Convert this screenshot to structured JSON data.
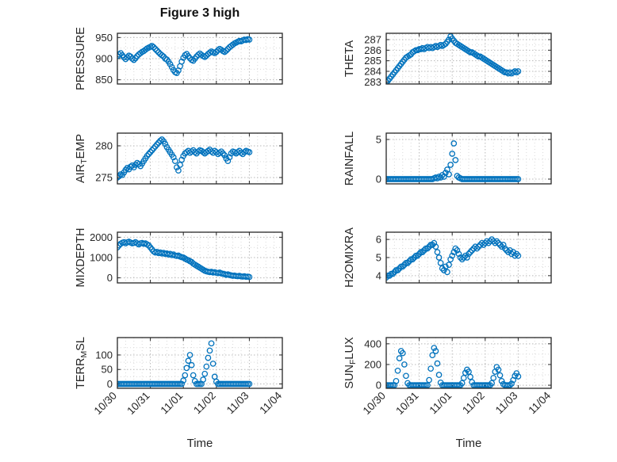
{
  "title": "Figure 3 high",
  "colors": {
    "marker": "#0072BD",
    "axis": "#262626",
    "grid_major": "#b8b8b8",
    "grid_minor": "#d9d9d9"
  },
  "chart_data": {
    "type": "scatter",
    "xlabel": "Time",
    "x_tick_labels": [
      "10/30",
      "10/31",
      "11/01",
      "11/02",
      "11/03",
      "11/04"
    ],
    "x_range": [
      0,
      5
    ],
    "t": [
      0,
      0.05,
      0.1,
      0.15,
      0.2,
      0.25,
      0.3,
      0.35,
      0.4,
      0.45,
      0.5,
      0.55,
      0.6,
      0.65,
      0.7,
      0.75,
      0.8,
      0.85,
      0.9,
      0.95,
      1.0,
      1.05,
      1.1,
      1.15,
      1.2,
      1.25,
      1.3,
      1.35,
      1.4,
      1.45,
      1.5,
      1.55,
      1.6,
      1.65,
      1.7,
      1.75,
      1.8,
      1.85,
      1.9,
      1.95,
      2.0,
      2.05,
      2.1,
      2.15,
      2.2,
      2.25,
      2.3,
      2.35,
      2.4,
      2.45,
      2.5,
      2.55,
      2.6,
      2.65,
      2.7,
      2.75,
      2.8,
      2.85,
      2.9,
      2.95,
      3.0,
      3.05,
      3.1,
      3.15,
      3.2,
      3.25,
      3.3,
      3.35,
      3.4,
      3.45,
      3.5,
      3.55,
      3.6,
      3.65,
      3.7,
      3.75,
      3.8,
      3.85,
      3.9,
      3.95,
      4.0
    ],
    "subplots": [
      {
        "name": "PRESSURE",
        "label_parts": [
          {
            "t": "PRESSURE"
          }
        ],
        "ylim": [
          840,
          960
        ],
        "yticks": [
          850,
          900,
          950
        ],
        "values": [
          906,
          910,
          913,
          908,
          903,
          899,
          903,
          907,
          905,
          900,
          897,
          901,
          906,
          910,
          913,
          916,
          918,
          921,
          924,
          926,
          928,
          930,
          927,
          923,
          919,
          915,
          911,
          908,
          905,
          900,
          898,
          893,
          887,
          880,
          873,
          868,
          866,
          872,
          882,
          893,
          902,
          908,
          911,
          906,
          901,
          897,
          895,
          900,
          905,
          909,
          912,
          909,
          906,
          904,
          907,
          911,
          914,
          917,
          915,
          913,
          916,
          920,
          923,
          921,
          918,
          916,
          919,
          923,
          927,
          930,
          933,
          936,
          938,
          940,
          942,
          941,
          943,
          945,
          944,
          946,
          945
        ]
      },
      {
        "name": "THETA",
        "label_parts": [
          {
            "t": "THETA"
          }
        ],
        "ylim": [
          282.8,
          287.6
        ],
        "yticks": [
          283,
          284,
          285,
          286,
          287
        ],
        "values": [
          283.0,
          283.1,
          283.3,
          283.5,
          283.7,
          283.9,
          284.1,
          284.3,
          284.5,
          284.7,
          284.9,
          285.1,
          285.3,
          285.4,
          285.5,
          285.6,
          285.8,
          285.9,
          286.0,
          286.0,
          286.1,
          286.1,
          286.2,
          286.1,
          286.2,
          286.3,
          286.2,
          286.3,
          286.2,
          286.3,
          286.4,
          286.3,
          286.4,
          286.5,
          286.4,
          286.5,
          286.6,
          286.8,
          287.0,
          287.3,
          287.1,
          286.9,
          286.7,
          286.6,
          286.5,
          286.4,
          286.3,
          286.2,
          286.1,
          286.0,
          285.9,
          285.8,
          285.8,
          285.7,
          285.6,
          285.5,
          285.4,
          285.4,
          285.3,
          285.2,
          285.1,
          285.0,
          284.9,
          284.8,
          284.7,
          284.6,
          284.5,
          284.4,
          284.3,
          284.2,
          284.1,
          284.0,
          283.9,
          283.9,
          283.8,
          283.9,
          283.8,
          283.9,
          284.0,
          283.9,
          284.0
        ]
      },
      {
        "name": "AIR_TEMP",
        "label_parts": [
          {
            "t": "AIR"
          },
          {
            "t": "T",
            "sub": true
          },
          {
            "t": "EMP"
          }
        ],
        "ylim": [
          274,
          282
        ],
        "yticks": [
          275,
          280
        ],
        "values": [
          275.0,
          275.2,
          275.5,
          275.4,
          275.8,
          276.2,
          276.5,
          276.3,
          276.7,
          276.9,
          276.6,
          277.0,
          277.3,
          277.1,
          276.8,
          277.2,
          277.6,
          278.0,
          278.4,
          278.7,
          279.0,
          279.3,
          279.6,
          279.9,
          280.2,
          280.5,
          280.8,
          281.0,
          280.7,
          280.3,
          279.8,
          279.4,
          279.0,
          278.6,
          278.2,
          277.6,
          276.6,
          276.1,
          277.0,
          277.8,
          278.4,
          278.8,
          279.0,
          279.2,
          278.9,
          279.1,
          279.3,
          279.0,
          278.8,
          279.1,
          279.3,
          279.2,
          279.0,
          278.8,
          279.0,
          279.2,
          279.4,
          279.1,
          278.9,
          279.2,
          279.0,
          278.7,
          278.9,
          279.1,
          278.8,
          278.5,
          278.0,
          277.6,
          278.2,
          278.8,
          279.1,
          279.0,
          278.8,
          279.0,
          279.2,
          278.9,
          278.7,
          279.0,
          279.2,
          279.1,
          279.0
        ]
      },
      {
        "name": "RAINFALL",
        "label_parts": [
          {
            "t": "RAINFALL"
          }
        ],
        "ylim": [
          -0.6,
          5.8
        ],
        "yticks": [
          0,
          5
        ],
        "values": [
          0,
          0,
          0,
          0,
          0,
          0,
          0,
          0,
          0,
          0,
          0,
          0,
          0,
          0,
          0,
          0,
          0,
          0,
          0,
          0,
          0,
          0,
          0,
          0,
          0,
          0,
          0,
          0,
          0,
          0.1,
          0.2,
          0.1,
          0.3,
          0.2,
          0.5,
          0.3,
          0.8,
          1.2,
          0.6,
          1.8,
          3.2,
          4.5,
          2.4,
          0.4,
          0.2,
          0.1,
          0,
          0,
          0,
          0,
          0,
          0,
          0,
          0,
          0,
          0,
          0,
          0,
          0,
          0,
          0,
          0,
          0,
          0,
          0,
          0,
          0,
          0,
          0,
          0,
          0,
          0,
          0,
          0,
          0,
          0,
          0,
          0,
          0,
          0,
          0
        ]
      },
      {
        "name": "MIXDEPTH",
        "label_parts": [
          {
            "t": "MIXDEPTH"
          }
        ],
        "ylim": [
          -250,
          2250
        ],
        "yticks": [
          0,
          1000,
          2000
        ],
        "values": [
          1500,
          1600,
          1680,
          1730,
          1760,
          1700,
          1750,
          1780,
          1740,
          1700,
          1720,
          1760,
          1700,
          1650,
          1700,
          1720,
          1680,
          1700,
          1650,
          1600,
          1500,
          1400,
          1300,
          1250,
          1280,
          1220,
          1250,
          1200,
          1230,
          1180,
          1200,
          1150,
          1180,
          1120,
          1150,
          1100,
          1080,
          1100,
          1050,
          1020,
          1000,
          950,
          900,
          870,
          820,
          780,
          700,
          650,
          600,
          550,
          500,
          450,
          400,
          350,
          320,
          300,
          280,
          300,
          260,
          280,
          250,
          230,
          260,
          220,
          200,
          180,
          150,
          170,
          140,
          120,
          100,
          110,
          90,
          80,
          100,
          70,
          60,
          80,
          50,
          60,
          40
        ]
      },
      {
        "name": "H2OMIXRA",
        "label_parts": [
          {
            "t": "H2OMIXRA"
          }
        ],
        "ylim": [
          3.6,
          6.4
        ],
        "yticks": [
          4,
          5,
          6
        ],
        "values": [
          3.9,
          4.0,
          4.0,
          4.1,
          4.1,
          4.2,
          4.3,
          4.3,
          4.4,
          4.5,
          4.5,
          4.6,
          4.7,
          4.7,
          4.8,
          4.9,
          4.9,
          5.0,
          5.1,
          5.1,
          5.2,
          5.3,
          5.3,
          5.4,
          5.5,
          5.5,
          5.6,
          5.7,
          5.7,
          5.8,
          5.6,
          5.3,
          5.0,
          4.7,
          4.4,
          4.3,
          4.5,
          4.2,
          4.6,
          4.9,
          5.1,
          5.3,
          5.5,
          5.4,
          5.2,
          5.0,
          4.9,
          5.0,
          5.1,
          5.0,
          5.2,
          5.3,
          5.4,
          5.5,
          5.6,
          5.5,
          5.6,
          5.7,
          5.8,
          5.7,
          5.8,
          5.9,
          5.8,
          5.9,
          6.0,
          5.9,
          5.8,
          5.9,
          5.8,
          5.7,
          5.6,
          5.7,
          5.5,
          5.4,
          5.3,
          5.4,
          5.2,
          5.3,
          5.1,
          5.2,
          5.1
        ]
      },
      {
        "name": "TERR_MSL",
        "label_parts": [
          {
            "t": "TERR"
          },
          {
            "t": "M",
            "sub": true
          },
          {
            "t": "SL"
          }
        ],
        "ylim": [
          -15,
          160
        ],
        "yticks": [
          0,
          50,
          100
        ],
        "values": [
          0,
          0,
          0,
          0,
          0,
          0,
          0,
          0,
          0,
          0,
          0,
          0,
          0,
          0,
          0,
          0,
          0,
          0,
          0,
          0,
          0,
          0,
          0,
          0,
          0,
          0,
          0,
          0,
          0,
          0,
          0,
          0,
          0,
          0,
          0,
          0,
          0,
          0,
          0,
          0,
          12,
          30,
          55,
          80,
          100,
          65,
          30,
          10,
          0,
          0,
          0,
          0,
          15,
          35,
          60,
          90,
          115,
          140,
          70,
          25,
          8,
          0,
          0,
          0,
          0,
          0,
          0,
          0,
          0,
          0,
          0,
          0,
          0,
          0,
          0,
          0,
          0,
          0,
          0,
          0,
          0
        ]
      },
      {
        "name": "SUN_FLUX",
        "label_parts": [
          {
            "t": "SUN"
          },
          {
            "t": "F",
            "sub": true
          },
          {
            "t": "LUX"
          }
        ],
        "ylim": [
          -30,
          460
        ],
        "yticks": [
          0,
          200,
          400
        ],
        "values": [
          0,
          0,
          0,
          0,
          0,
          0,
          40,
          140,
          260,
          330,
          310,
          200,
          90,
          20,
          0,
          0,
          0,
          0,
          0,
          0,
          0,
          0,
          0,
          0,
          0,
          0,
          50,
          160,
          290,
          360,
          330,
          210,
          100,
          25,
          0,
          0,
          0,
          0,
          0,
          0,
          0,
          0,
          0,
          0,
          0,
          0,
          20,
          70,
          120,
          150,
          130,
          80,
          30,
          0,
          0,
          0,
          0,
          0,
          0,
          0,
          0,
          0,
          0,
          0,
          20,
          70,
          130,
          175,
          150,
          95,
          40,
          10,
          0,
          0,
          0,
          0,
          15,
          50,
          90,
          115,
          85
        ]
      }
    ]
  }
}
